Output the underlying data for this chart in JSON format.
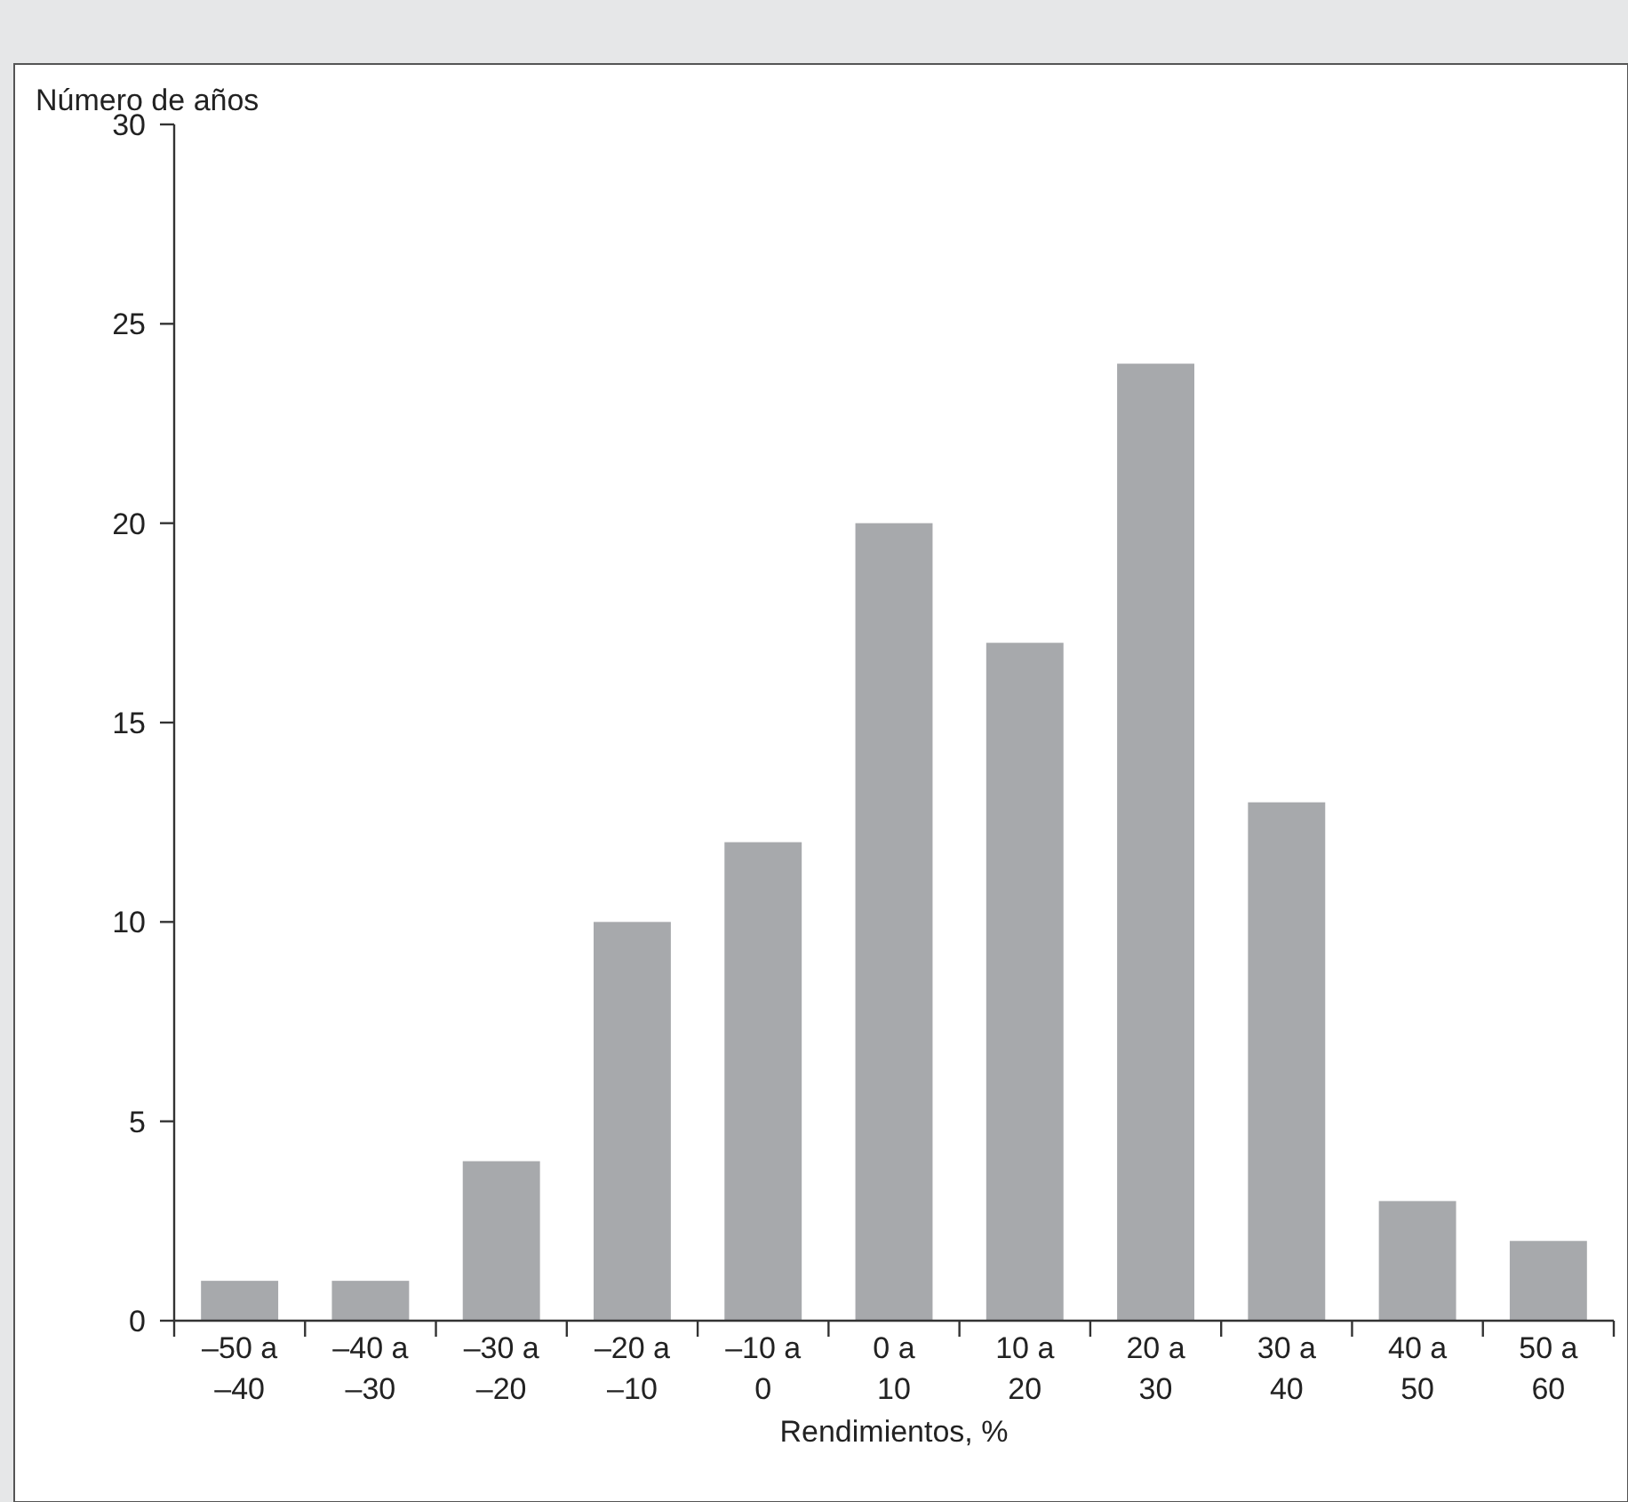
{
  "chart_data": {
    "type": "bar",
    "ylabel": "Número de años",
    "xlabel": "Rendimientos, %",
    "categories": [
      "–50 a –40",
      "–40 a –30",
      "–30 a –20",
      "–20 a –10",
      "–10 a 0",
      "0 a 10",
      "10 a 20",
      "20 a 30",
      "30 a 40",
      "40 a 50",
      "50 a 60"
    ],
    "values": [
      1,
      1,
      4,
      10,
      12,
      20,
      17,
      24,
      13,
      3,
      2
    ],
    "color": "#a7a9ac",
    "ylim": [
      0,
      30
    ],
    "yticks": [
      0,
      5,
      10,
      15,
      20,
      25,
      30
    ],
    "grid": false
  }
}
